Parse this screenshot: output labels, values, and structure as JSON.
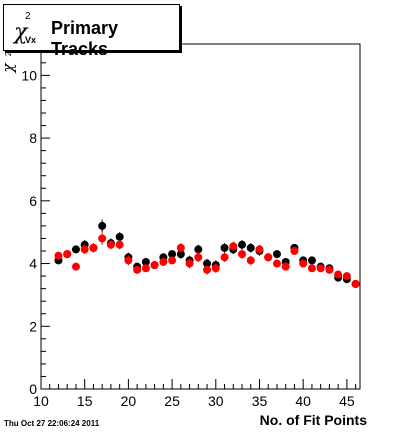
{
  "title": {
    "symbol": "χ",
    "superscript": "2",
    "subscript": "Vx",
    "text": "Primary Tracks"
  },
  "timestamp": "Thu Oct 27 22:06:24 2011",
  "chart_data": {
    "type": "scatter",
    "xlabel": "No. of Fit Points",
    "ylabel_symbol": "χ",
    "ylabel_superscript": "2",
    "xlim": [
      10,
      46.5
    ],
    "ylim": [
      0,
      11
    ],
    "x_ticks": [
      10,
      15,
      20,
      25,
      30,
      35,
      40,
      45
    ],
    "y_ticks": [
      0,
      2,
      4,
      6,
      8,
      10
    ],
    "grid": false,
    "colors": {
      "series_black": "#000000",
      "series_red": "#ff0000"
    },
    "series": [
      {
        "color": "#000000",
        "x": [
          12,
          13,
          14,
          15,
          16,
          17,
          18,
          19,
          20,
          21,
          22,
          23,
          24,
          25,
          26,
          27,
          28,
          29,
          30,
          31,
          32,
          33,
          34,
          35,
          36,
          37,
          38,
          39,
          40,
          41,
          42,
          43,
          44,
          45,
          46
        ],
        "y": [
          4.1,
          4.3,
          4.45,
          4.6,
          4.5,
          5.2,
          4.65,
          4.85,
          4.2,
          3.9,
          4.05,
          3.95,
          4.2,
          4.3,
          4.3,
          4.1,
          4.45,
          4.0,
          3.95,
          4.5,
          4.45,
          4.6,
          4.5,
          4.4,
          4.2,
          4.3,
          4.05,
          4.5,
          4.1,
          4.1,
          3.9,
          3.85,
          3.55,
          3.5,
          3.35
        ],
        "yerr": [
          0.12,
          0.12,
          0.12,
          0.15,
          0.15,
          0.2,
          0.15,
          0.15,
          0.15,
          0.12,
          0.12,
          0.12,
          0.12,
          0.12,
          0.15,
          0.15,
          0.15,
          0.15,
          0.15,
          0.15,
          0.15,
          0.15,
          0.15,
          0.15,
          0.12,
          0.12,
          0.12,
          0.12,
          0.12,
          0.12,
          0.12,
          0.1,
          0.1,
          0.1,
          0.1
        ]
      },
      {
        "color": "#ff0000",
        "x": [
          12,
          13,
          14,
          15,
          16,
          17,
          18,
          19,
          20,
          21,
          22,
          23,
          24,
          25,
          26,
          27,
          28,
          29,
          30,
          31,
          32,
          33,
          34,
          35,
          36,
          37,
          38,
          39,
          40,
          41,
          42,
          43,
          44,
          45,
          46
        ],
        "y": [
          4.25,
          4.3,
          3.9,
          4.45,
          4.5,
          4.8,
          4.6,
          4.6,
          4.1,
          3.8,
          3.85,
          3.95,
          4.05,
          4.1,
          4.5,
          4.0,
          4.2,
          3.8,
          3.85,
          4.2,
          4.55,
          4.3,
          4.1,
          4.45,
          4.2,
          4.0,
          3.9,
          4.4,
          4.0,
          3.85,
          3.85,
          3.8,
          3.65,
          3.6,
          3.35
        ],
        "yerr": [
          0.12,
          0.12,
          0.12,
          0.15,
          0.15,
          0.2,
          0.15,
          0.15,
          0.15,
          0.12,
          0.12,
          0.12,
          0.12,
          0.12,
          0.15,
          0.15,
          0.15,
          0.15,
          0.15,
          0.15,
          0.15,
          0.15,
          0.15,
          0.15,
          0.12,
          0.12,
          0.12,
          0.12,
          0.12,
          0.12,
          0.12,
          0.1,
          0.1,
          0.1,
          0.1
        ]
      }
    ]
  }
}
